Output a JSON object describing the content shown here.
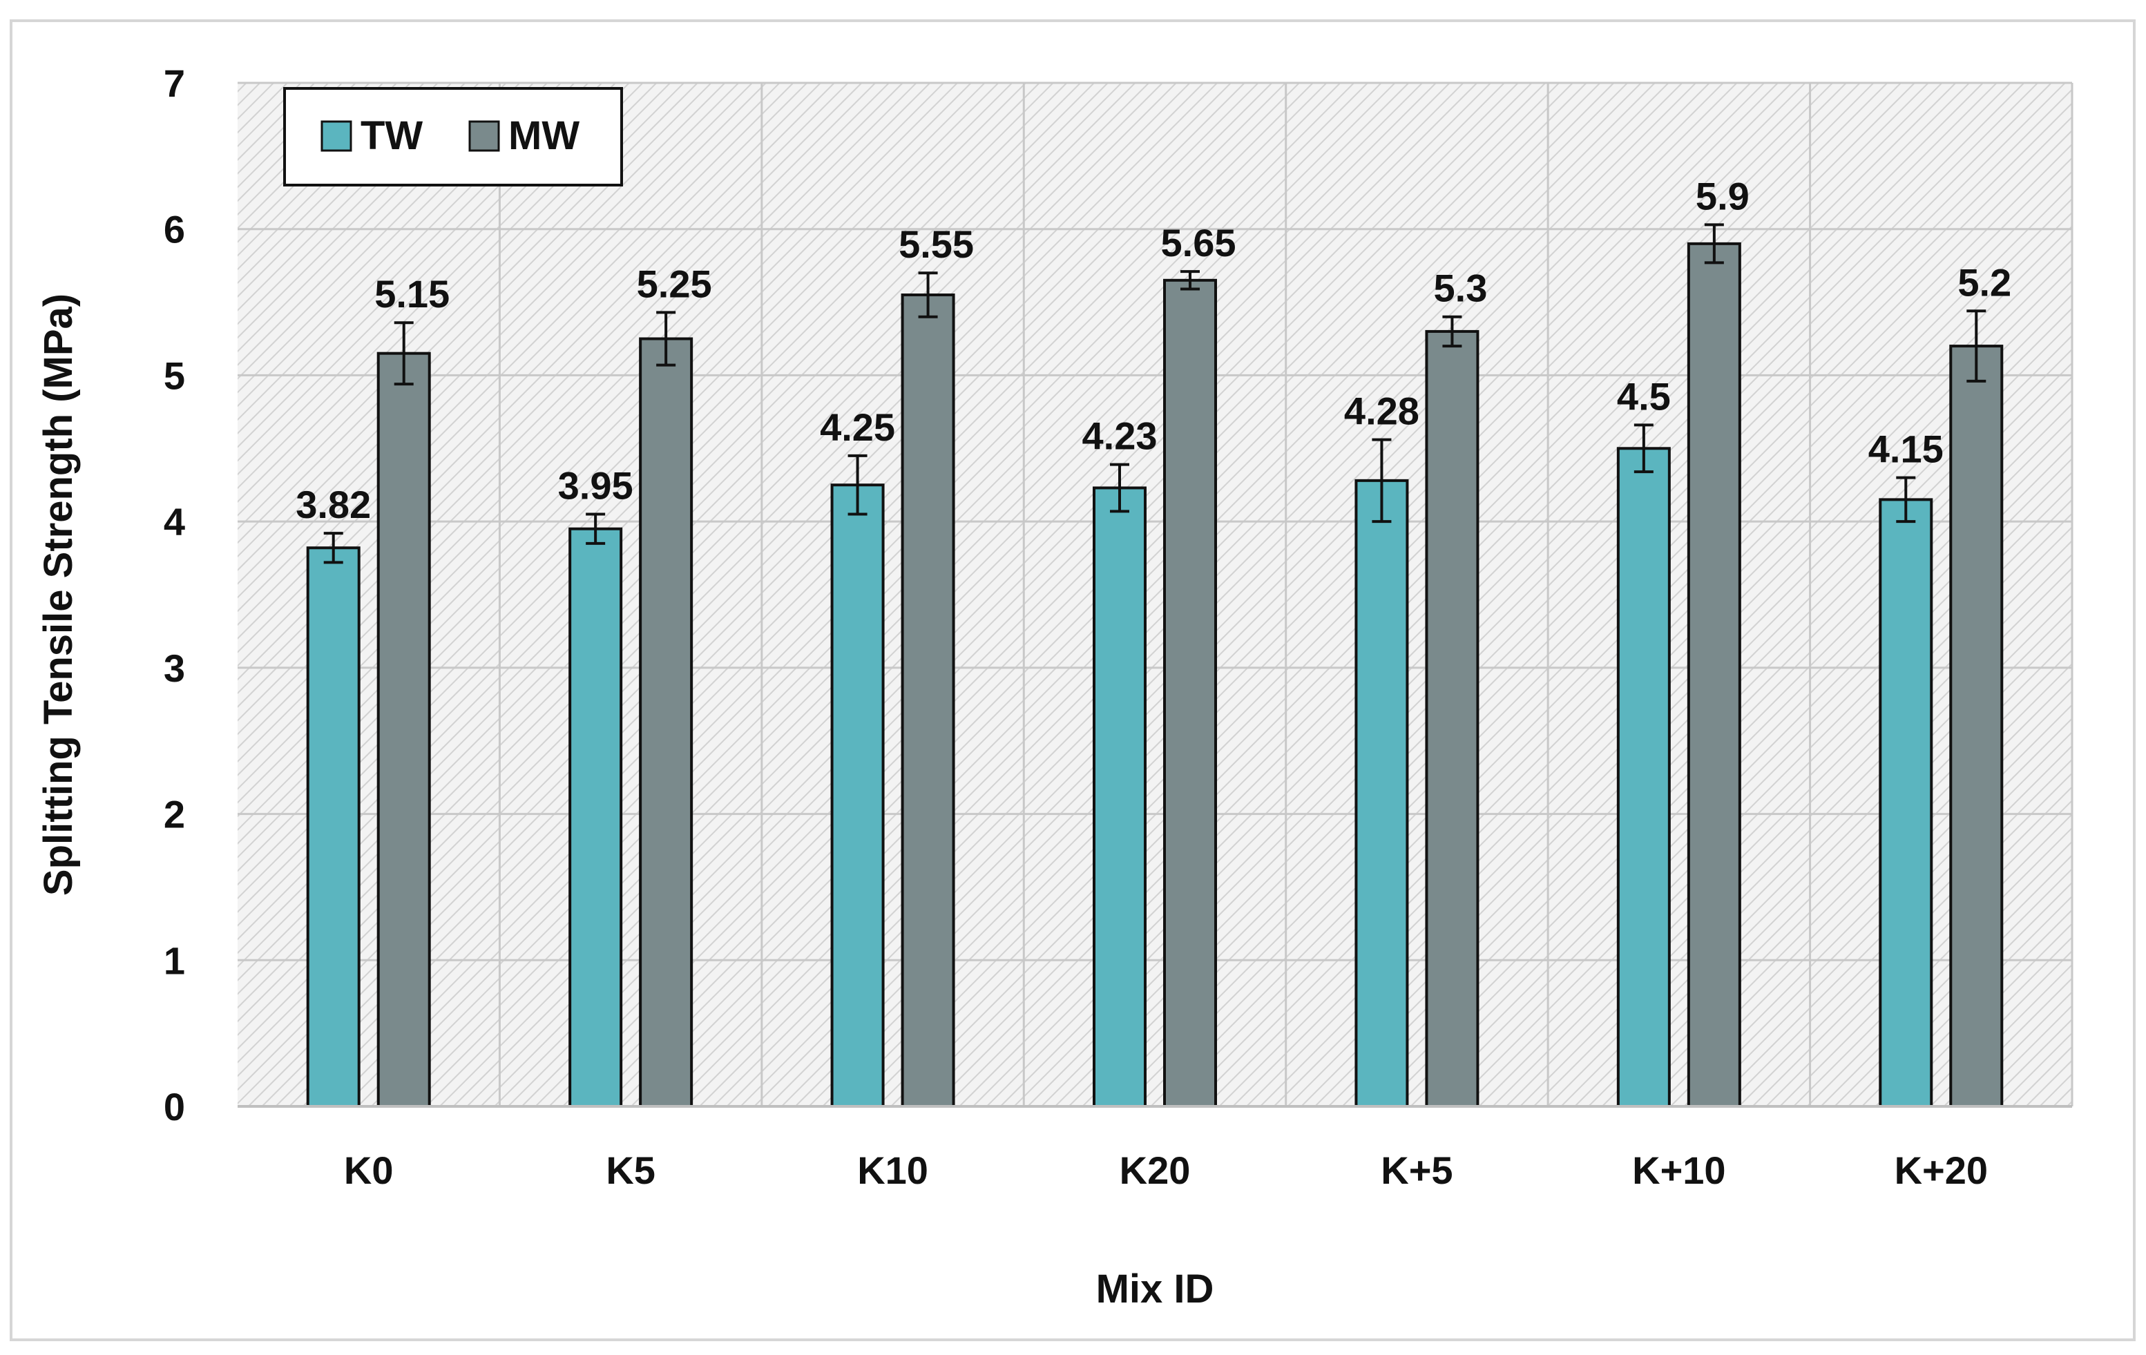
{
  "chart_data": {
    "type": "bar",
    "title": "",
    "xlabel": "Mix ID",
    "ylabel": "Splitting Tensile Strength (MPa)",
    "ylim": [
      0,
      7
    ],
    "yticks": [
      "0",
      "1",
      "2",
      "3",
      "4",
      "5",
      "6",
      "7"
    ],
    "grid": true,
    "legend_position": "top-left",
    "categories": [
      "K0",
      "K5",
      "K10",
      "K20",
      "K+5",
      "K+10",
      "K+20"
    ],
    "series": [
      {
        "name": "TW",
        "color": "#5bb5bf",
        "values": [
          3.82,
          3.95,
          4.25,
          4.23,
          4.28,
          4.5,
          4.15
        ],
        "labels": [
          "3.82",
          "3.95",
          "4.25",
          "4.23",
          "4.28",
          "4.5",
          "4.15"
        ],
        "errors": [
          0.1,
          0.1,
          0.2,
          0.16,
          0.28,
          0.16,
          0.15
        ]
      },
      {
        "name": "MW",
        "color": "#7a8a8c",
        "values": [
          5.15,
          5.25,
          5.55,
          5.65,
          5.3,
          5.9,
          5.2
        ],
        "labels": [
          "5.15",
          "5.25",
          "5.55",
          "5.65",
          "5.3",
          "5.9",
          "5.2"
        ],
        "errors": [
          0.21,
          0.18,
          0.15,
          0.06,
          0.1,
          0.13,
          0.24
        ]
      }
    ]
  }
}
